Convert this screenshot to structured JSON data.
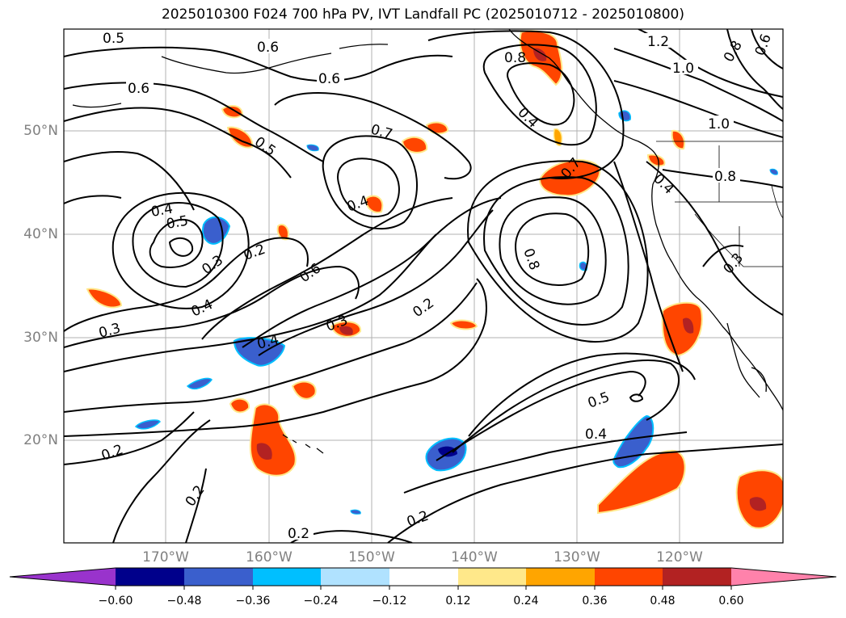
{
  "title": "2025010300 F024 700 hPa PV, IVT Landfall PC (2025010712 - 2025010800)",
  "lat_labels": [
    "50°N",
    "40°N",
    "30°N",
    "20°N"
  ],
  "lon_labels": [
    "170°W",
    "160°W",
    "150°W",
    "140°W",
    "130°W",
    "120°W"
  ],
  "contour_labels": [
    "0.5",
    "0.6",
    "0.6",
    "0.6",
    "1.2",
    "1.0",
    "1.0",
    "0.8",
    "0.6",
    "0.4",
    "0.7",
    "0.5",
    "0.7",
    "0.4",
    "0.5",
    "0.4",
    "0.8",
    "0.4",
    "0.2",
    "0.3",
    "0.6",
    "0.8",
    "0.4",
    "0.3",
    "0.3",
    "0.4",
    "0.2",
    "0.5",
    "0.2",
    "0.4",
    "0.2",
    "0.2",
    "0.2",
    "0.3",
    "0.8"
  ],
  "colorbar": {
    "colors": [
      "#9933cc",
      "#00008b",
      "#3a5fcd",
      "#00bfff",
      "#b0e2ff",
      "#ffffff",
      "#ffe88a",
      "#ffa500",
      "#ff4500",
      "#b22222",
      "#ff82ab"
    ],
    "ticks": [
      "−0.60",
      "−0.48",
      "−0.36",
      "−0.24",
      "−0.12",
      "0.12",
      "0.24",
      "0.36",
      "0.48",
      "0.60"
    ]
  }
}
